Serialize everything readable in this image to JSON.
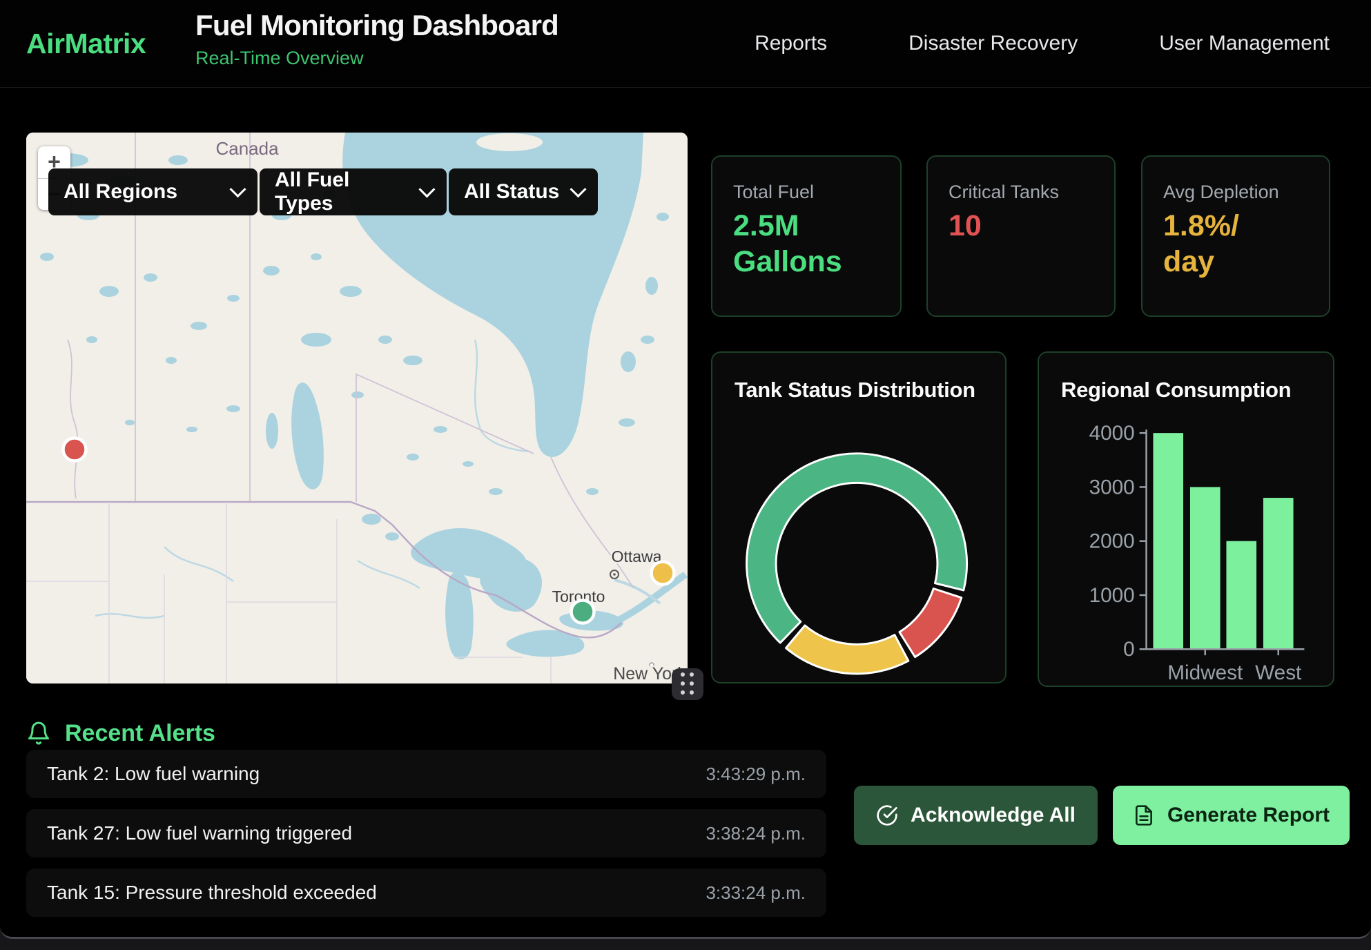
{
  "header": {
    "brand": "AirMatrix",
    "title": "Fuel Monitoring Dashboard",
    "subtitle": "Real-Time Overview",
    "nav": [
      "Reports",
      "Disaster Recovery",
      "User Management"
    ]
  },
  "map": {
    "country_label": "Canada",
    "city_labels": [
      "Ottawa",
      "Toronto",
      "New York"
    ],
    "filters": [
      "All Regions",
      "All Fuel Types",
      "All Status"
    ],
    "zoom_in": "+",
    "zoom_out": "−",
    "markers": [
      {
        "status": "critical",
        "color": "#d9534f"
      },
      {
        "status": "warning",
        "color": "#eec04a"
      },
      {
        "status": "normal",
        "color": "#4cae80"
      }
    ]
  },
  "stats": [
    {
      "label": "Total Fuel",
      "line1": "2.5M",
      "line2": "Gallons",
      "color": "#4ade80"
    },
    {
      "label": "Critical Tanks",
      "line1": "10",
      "line2": "",
      "color": "#e25252"
    },
    {
      "label": "Avg Depletion",
      "line1": "1.8%/",
      "line2": "day",
      "color": "#e6b33d"
    }
  ],
  "chart_data": [
    {
      "type": "donut",
      "title": "Tank Status Distribution",
      "series": [
        {
          "name": "normal",
          "value": 60,
          "color": "#4bb583"
        },
        {
          "name": "critical",
          "value": 10,
          "color": "#d9534f"
        },
        {
          "name": "warning",
          "value": 17,
          "color": "#eec44a"
        }
      ],
      "start_angle_deg": 222,
      "inner_radius_ratio": 0.73,
      "legend": "none"
    },
    {
      "type": "bar",
      "title": "Regional Consumption",
      "values": [
        4000,
        3000,
        2000,
        2800
      ],
      "x_tick_labels": [
        {
          "index": 1,
          "label": "Midwest"
        },
        {
          "index": 3,
          "label": "West"
        }
      ],
      "y_ticks": [
        0,
        1000,
        2000,
        3000,
        4000
      ],
      "ylim": [
        0,
        4000
      ],
      "bar_color": "#7df09d",
      "axis_color": "#9aa1a8"
    }
  ],
  "alerts": {
    "title": "Recent Alerts",
    "items": [
      {
        "text": "Tank 2: Low fuel warning",
        "time": "3:43:29 p.m."
      },
      {
        "text": "Tank 27: Low fuel warning triggered",
        "time": "3:38:24 p.m."
      },
      {
        "text": "Tank 15: Pressure threshold exceeded",
        "time": "3:33:24 p.m."
      }
    ]
  },
  "actions": {
    "acknowledge_all": "Acknowledge All",
    "generate_report": "Generate Report"
  }
}
